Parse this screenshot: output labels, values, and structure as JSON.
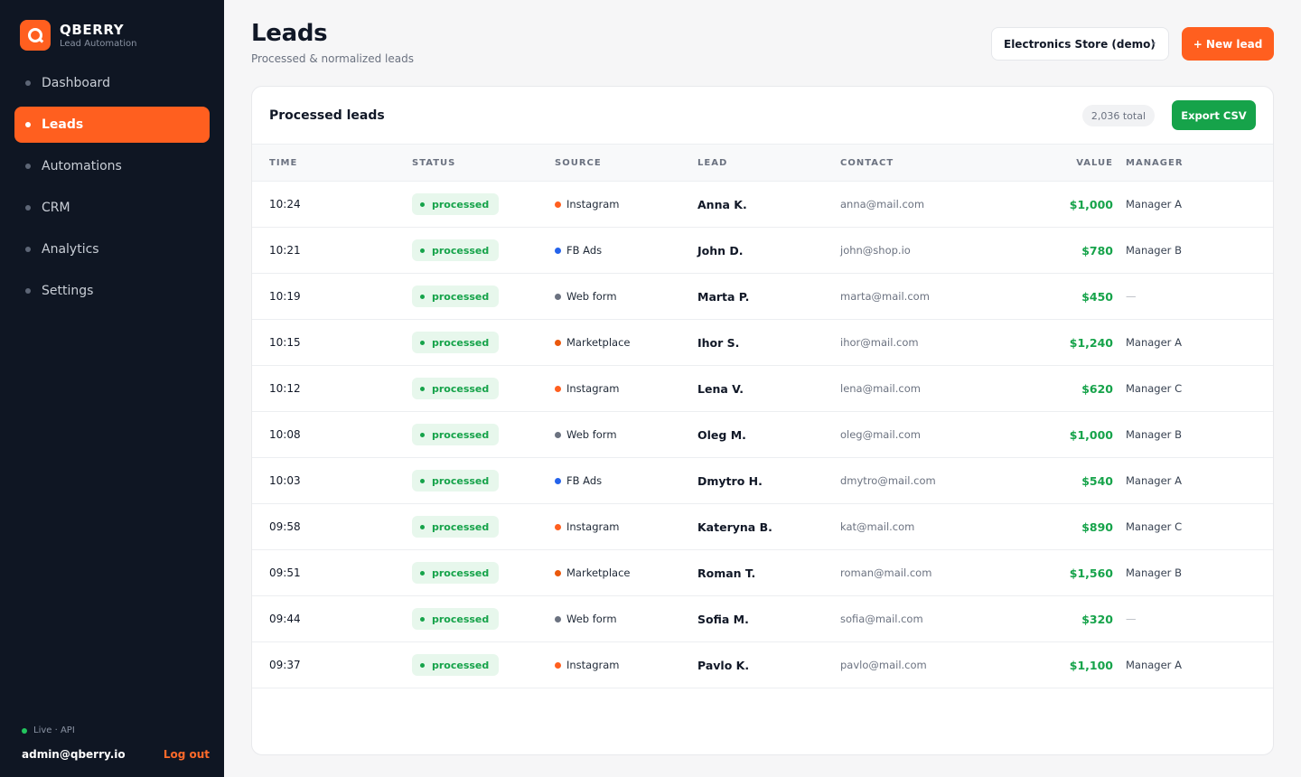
{
  "app": {
    "brand_name": "QBERRY",
    "brand_sub": "Lead Automation",
    "logo_letter_icon": "q-logo-icon",
    "accent_color": "#ff5f1f"
  },
  "sidebar": {
    "items": [
      {
        "label": "Dashboard",
        "active": false
      },
      {
        "label": "Leads",
        "active": true
      },
      {
        "label": "Automations",
        "active": false
      },
      {
        "label": "CRM",
        "active": false
      },
      {
        "label": "Analytics",
        "active": false
      },
      {
        "label": "Settings",
        "active": false
      }
    ],
    "status": "Live · API",
    "user_email": "admin@qberry.io",
    "logout_label": "Log out"
  },
  "header": {
    "title": "Leads",
    "subtitle": "Processed & normalized leads",
    "store_select": "Electronics Store (demo)",
    "new_lead_label": "+ New lead"
  },
  "card": {
    "title": "Processed leads",
    "total": "2,036 total",
    "export_label": "Export CSV"
  },
  "table": {
    "columns": [
      "TIME",
      "STATUS",
      "SOURCE",
      "LEAD",
      "CONTACT",
      "VALUE",
      "MANAGER"
    ],
    "rows": [
      {
        "time": "10:24",
        "status": "processed",
        "source": "Instagram",
        "source_color": "#ff5f1f",
        "lead": "Anna K.",
        "contact": "anna@mail.com",
        "value": "$1,000",
        "manager": "Manager A"
      },
      {
        "time": "10:21",
        "status": "processed",
        "source": "FB Ads",
        "source_color": "#2563eb",
        "lead": "John D.",
        "contact": "john@shop.io",
        "value": "$780",
        "manager": "Manager B"
      },
      {
        "time": "10:19",
        "status": "processed",
        "source": "Web form",
        "source_color": "#6b7280",
        "lead": "Marta P.",
        "contact": "marta@mail.com",
        "value": "$450",
        "manager": "—"
      },
      {
        "time": "10:15",
        "status": "processed",
        "source": "Marketplace",
        "source_color": "#ea580c",
        "lead": "Ihor S.",
        "contact": "ihor@mail.com",
        "value": "$1,240",
        "manager": "Manager A"
      },
      {
        "time": "10:12",
        "status": "processed",
        "source": "Instagram",
        "source_color": "#ff5f1f",
        "lead": "Lena V.",
        "contact": "lena@mail.com",
        "value": "$620",
        "manager": "Manager C"
      },
      {
        "time": "10:08",
        "status": "processed",
        "source": "Web form",
        "source_color": "#6b7280",
        "lead": "Oleg M.",
        "contact": "oleg@mail.com",
        "value": "$1,000",
        "manager": "Manager B"
      },
      {
        "time": "10:03",
        "status": "processed",
        "source": "FB Ads",
        "source_color": "#2563eb",
        "lead": "Dmytro H.",
        "contact": "dmytro@mail.com",
        "value": "$540",
        "manager": "Manager A"
      },
      {
        "time": "09:58",
        "status": "processed",
        "source": "Instagram",
        "source_color": "#ff5f1f",
        "lead": "Kateryna B.",
        "contact": "kat@mail.com",
        "value": "$890",
        "manager": "Manager C"
      },
      {
        "time": "09:51",
        "status": "processed",
        "source": "Marketplace",
        "source_color": "#ea580c",
        "lead": "Roman T.",
        "contact": "roman@mail.com",
        "value": "$1,560",
        "manager": "Manager B"
      },
      {
        "time": "09:44",
        "status": "processed",
        "source": "Web form",
        "source_color": "#6b7280",
        "lead": "Sofia M.",
        "contact": "sofia@mail.com",
        "value": "$320",
        "manager": "—"
      },
      {
        "time": "09:37",
        "status": "processed",
        "source": "Instagram",
        "source_color": "#ff5f1f",
        "lead": "Pavlo K.",
        "contact": "pavlo@mail.com",
        "value": "$1,100",
        "manager": "Manager A"
      }
    ]
  }
}
